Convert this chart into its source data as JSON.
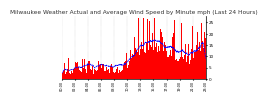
{
  "title": "Milwaukee Weather Actual and Average Wind Speed by Minute mph (Last 24 Hours)",
  "title_fontsize": 4.2,
  "bg_color": "#ffffff",
  "plot_bg_color": "#ffffff",
  "bar_color": "#ff0000",
  "avg_color": "#0000ff",
  "grid_color": "#aaaaaa",
  "n_points": 1440,
  "ylim": [
    0,
    28
  ],
  "yticks": [
    0,
    5,
    10,
    15,
    20,
    25
  ],
  "n_xticks": 12,
  "avg_linewidth": 0.6,
  "bar_width": 1.0
}
